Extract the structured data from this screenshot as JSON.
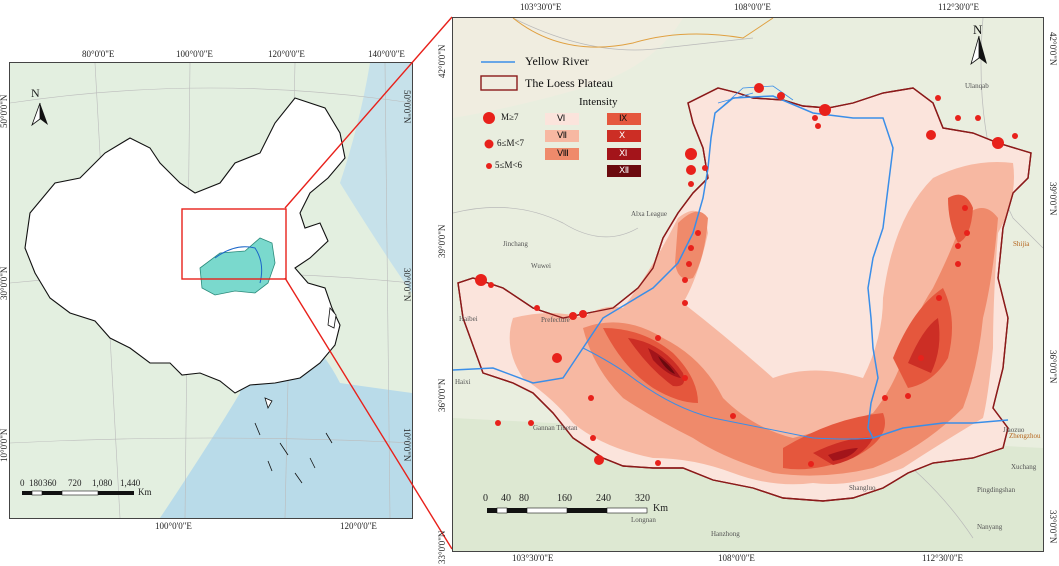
{
  "left_map": {
    "top_ticks": [
      "80°0'0\"E",
      "100°0'0\"E",
      "120°0'0\"E",
      "140°0'0\"E"
    ],
    "bottom_ticks": [
      "100°0'0\"E",
      "120°0'0\"E"
    ],
    "left_ticks": [
      "50°0'0\"N",
      "30°0'0\"N",
      "10°0'0\"N"
    ],
    "right_ticks": [
      "50°0'0\"N",
      "30°0'0\"N",
      "10°0'0\"N"
    ],
    "north": "N",
    "scale_ticks": [
      "0",
      "180",
      "360",
      "720",
      "1,080",
      "1,440"
    ],
    "scale_unit": "Km"
  },
  "right_map": {
    "top_ticks": [
      "103°30'0\"E",
      "108°0'0\"E",
      "112°30'0\"E"
    ],
    "bottom_ticks": [
      "103°30'0\"E",
      "108°0'0\"E",
      "112°30'0\"E"
    ],
    "left_ticks": [
      "42°0'0\"N",
      "39°0'0\"N",
      "36°0'0\"N",
      "33°0'0\"N"
    ],
    "right_ticks": [
      "42°0'0\"N",
      "39°0'0\"N",
      "36°0'0\"N",
      "33°0'0\"N"
    ],
    "north": "N",
    "scale_ticks": [
      "0",
      "40",
      "80",
      "160",
      "240",
      "320"
    ],
    "scale_unit": "Km",
    "place_labels": [
      "Alxa League",
      "Wuwei",
      "Jinchang",
      "Shijia",
      "Ulanqab",
      "Jiaozuo",
      "Zhengzhou",
      "Xuchang",
      "Pingdingshan",
      "Nanyang",
      "Shangluo",
      "Hanzhong",
      "Longnan",
      "Haixi",
      "Haibei",
      "Gannan Tibetan",
      "Prefecture"
    ]
  },
  "legend": {
    "yellow_river": "Yellow River",
    "loess_plateau": "The Loess Plateau",
    "intensity_title": "Intensity",
    "magnitudes": [
      "M≥7",
      "6≤M<7",
      "5≤M<6"
    ],
    "intensity_classes": [
      "Ⅵ",
      "Ⅶ",
      "Ⅷ",
      "Ⅸ",
      "Ⅹ",
      "Ⅺ",
      "Ⅻ"
    ],
    "intensity_colors": [
      "#fbe4dc",
      "#f7b8a2",
      "#ef8a6b",
      "#e5573d",
      "#cc2e25",
      "#a3141a",
      "#6b0a0e"
    ]
  },
  "colors": {
    "river": "#3a8ee8",
    "plateau_border": "#8b1a1a",
    "epicenter": "#e8211b",
    "connector": "#e8211b"
  }
}
